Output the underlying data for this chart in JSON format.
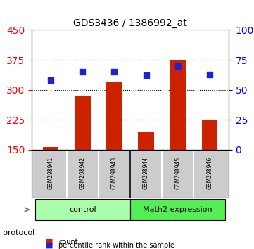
{
  "title": "GDS3436 / 1386992_at",
  "samples": [
    "GSM298941",
    "GSM298942",
    "GSM298943",
    "GSM298944",
    "GSM298945",
    "GSM298946"
  ],
  "counts": [
    157,
    285,
    320,
    195,
    375,
    225
  ],
  "percentile_ranks": [
    58,
    65,
    65,
    62,
    70,
    63
  ],
  "ylim_left": [
    150,
    450
  ],
  "ylim_right": [
    0,
    100
  ],
  "yticks_left": [
    150,
    225,
    300,
    375,
    450
  ],
  "yticks_right": [
    0,
    25,
    50,
    75,
    100
  ],
  "ytick_labels_right": [
    "0",
    "25",
    "50",
    "75",
    "100%"
  ],
  "bar_color": "#cc2200",
  "scatter_color": "#2222cc",
  "grid_color": "#000000",
  "groups": [
    {
      "label": "control",
      "start": 0,
      "end": 3,
      "color": "#aaffaa"
    },
    {
      "label": "Math2 expression",
      "start": 3,
      "end": 6,
      "color": "#55ee55"
    }
  ],
  "protocol_label": "protocol",
  "legend_bar_label": "count",
  "legend_scatter_label": "percentile rank within the sample",
  "background_color": "#ffffff",
  "plot_bg_color": "#ffffff",
  "sample_box_color": "#cccccc",
  "bar_bottom": 150
}
